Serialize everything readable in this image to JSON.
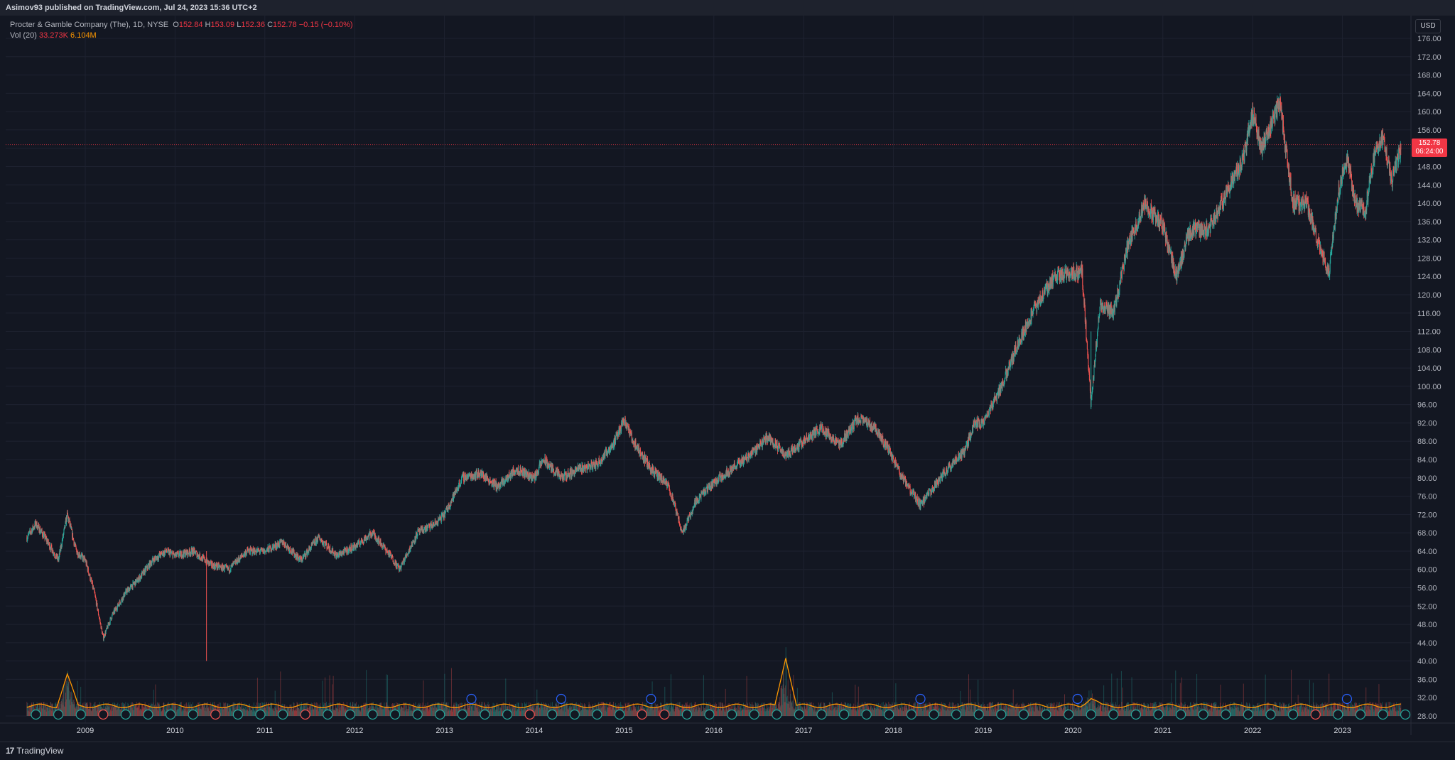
{
  "topbar": {
    "text": "Asimov93 published on TradingView.com, Jul 24, 2023 15:36 UTC+2"
  },
  "legend": {
    "symbol": "Procter & Gamble Company (The), 1D, NYSE",
    "open_label": "O",
    "open": "152.84",
    "high_label": "H",
    "high": "153.09",
    "low_label": "L",
    "low": "152.36",
    "close_label": "C",
    "close": "152.78",
    "change": "−0.15 (−0.10%)",
    "vol_label": "Vol (20)",
    "vol_value": "33.273K",
    "vol_ma": "6.104M"
  },
  "currency": "USD",
  "price_badge": {
    "price": "152.78",
    "countdown": "06:24:00"
  },
  "brand": {
    "name": "TradingView",
    "mark": "17"
  },
  "colors": {
    "background": "#131722",
    "up": "#26a69a",
    "down": "#ef5350",
    "volume_ma": "#ff9800",
    "last_price": "#f23645",
    "earnings_icon": "#26a69a",
    "dividend_icon": "#2962ff"
  },
  "chart_data": {
    "type": "candlestick",
    "title": "Procter & Gamble Company (The), 1D, NYSE",
    "ylim": [
      28,
      176
    ],
    "yticks": [
      "176.00",
      "172.00",
      "168.00",
      "164.00",
      "160.00",
      "156.00",
      "152.00",
      "148.00",
      "144.00",
      "140.00",
      "136.00",
      "132.00",
      "128.00",
      "124.00",
      "120.00",
      "116.00",
      "112.00",
      "108.00",
      "104.00",
      "100.00",
      "96.00",
      "92.00",
      "88.00",
      "84.00",
      "80.00",
      "76.00",
      "72.00",
      "68.00",
      "64.00",
      "60.00",
      "56.00",
      "52.00",
      "48.00",
      "44.00",
      "40.00",
      "36.00",
      "32.00",
      "28.00"
    ],
    "x_years": [
      "2009",
      "2010",
      "2011",
      "2012",
      "2013",
      "2014",
      "2015",
      "2016",
      "2017",
      "2018",
      "2019",
      "2020",
      "2021",
      "2022",
      "2023"
    ],
    "price_path": [
      [
        2008.35,
        67
      ],
      [
        2008.45,
        70
      ],
      [
        2008.55,
        67
      ],
      [
        2008.7,
        62
      ],
      [
        2008.8,
        72
      ],
      [
        2008.9,
        64
      ],
      [
        2009.0,
        62
      ],
      [
        2009.1,
        55
      ],
      [
        2009.2,
        45
      ],
      [
        2009.3,
        50
      ],
      [
        2009.45,
        55
      ],
      [
        2009.6,
        58
      ],
      [
        2009.75,
        62
      ],
      [
        2009.9,
        64
      ],
      [
        2010.0,
        63
      ],
      [
        2010.2,
        64
      ],
      [
        2010.4,
        61
      ],
      [
        2010.6,
        60
      ],
      [
        2010.8,
        64
      ],
      [
        2011.0,
        64
      ],
      [
        2011.2,
        66
      ],
      [
        2011.4,
        62
      ],
      [
        2011.6,
        67
      ],
      [
        2011.8,
        63
      ],
      [
        2012.0,
        65
      ],
      [
        2012.2,
        68
      ],
      [
        2012.4,
        63
      ],
      [
        2012.5,
        60
      ],
      [
        2012.7,
        68
      ],
      [
        2012.9,
        70
      ],
      [
        2013.0,
        72
      ],
      [
        2013.2,
        80
      ],
      [
        2013.4,
        81
      ],
      [
        2013.6,
        78
      ],
      [
        2013.8,
        82
      ],
      [
        2014.0,
        80
      ],
      [
        2014.1,
        84
      ],
      [
        2014.3,
        80
      ],
      [
        2014.5,
        82
      ],
      [
        2014.7,
        83
      ],
      [
        2014.9,
        88
      ],
      [
        2015.0,
        93
      ],
      [
        2015.1,
        88
      ],
      [
        2015.3,
        82
      ],
      [
        2015.5,
        78
      ],
      [
        2015.65,
        68
      ],
      [
        2015.8,
        75
      ],
      [
        2016.0,
        79
      ],
      [
        2016.2,
        82
      ],
      [
        2016.4,
        85
      ],
      [
        2016.6,
        89
      ],
      [
        2016.8,
        85
      ],
      [
        2017.0,
        88
      ],
      [
        2017.2,
        91
      ],
      [
        2017.4,
        87
      ],
      [
        2017.6,
        93
      ],
      [
        2017.8,
        91
      ],
      [
        2017.95,
        86
      ],
      [
        2018.1,
        80
      ],
      [
        2018.3,
        74
      ],
      [
        2018.45,
        78
      ],
      [
        2018.6,
        82
      ],
      [
        2018.8,
        86
      ],
      [
        2018.9,
        92
      ],
      [
        2019.0,
        92
      ],
      [
        2019.2,
        100
      ],
      [
        2019.4,
        110
      ],
      [
        2019.6,
        118
      ],
      [
        2019.8,
        124
      ],
      [
        2020.1,
        125
      ],
      [
        2020.2,
        96
      ],
      [
        2020.3,
        118
      ],
      [
        2020.45,
        116
      ],
      [
        2020.6,
        130
      ],
      [
        2020.8,
        140
      ],
      [
        2021.0,
        135
      ],
      [
        2021.15,
        124
      ],
      [
        2021.3,
        134
      ],
      [
        2021.5,
        134
      ],
      [
        2021.7,
        142
      ],
      [
        2021.9,
        150
      ],
      [
        2022.0,
        160
      ],
      [
        2022.1,
        152
      ],
      [
        2022.3,
        162
      ],
      [
        2022.45,
        140
      ],
      [
        2022.6,
        140
      ],
      [
        2022.75,
        130
      ],
      [
        2022.85,
        125
      ],
      [
        2022.95,
        142
      ],
      [
        2023.05,
        150
      ],
      [
        2023.15,
        140
      ],
      [
        2023.25,
        138
      ],
      [
        2023.35,
        150
      ],
      [
        2023.45,
        155
      ],
      [
        2023.55,
        145
      ],
      [
        2023.65,
        152
      ]
    ],
    "volume_ma_peaks": [
      [
        2008.8,
        37
      ],
      [
        2016.8,
        41
      ],
      [
        2020.2,
        32
      ]
    ],
    "events": {
      "dividends_years": [
        2013.3,
        2014.3,
        2015.3,
        2018.3,
        2020.05,
        2023.05
      ],
      "earnings_red_years": [
        2009.1,
        2010.4,
        2011.35,
        2014.0,
        2015.15,
        2015.35,
        2022.6
      ]
    },
    "last_price": 152.78
  }
}
